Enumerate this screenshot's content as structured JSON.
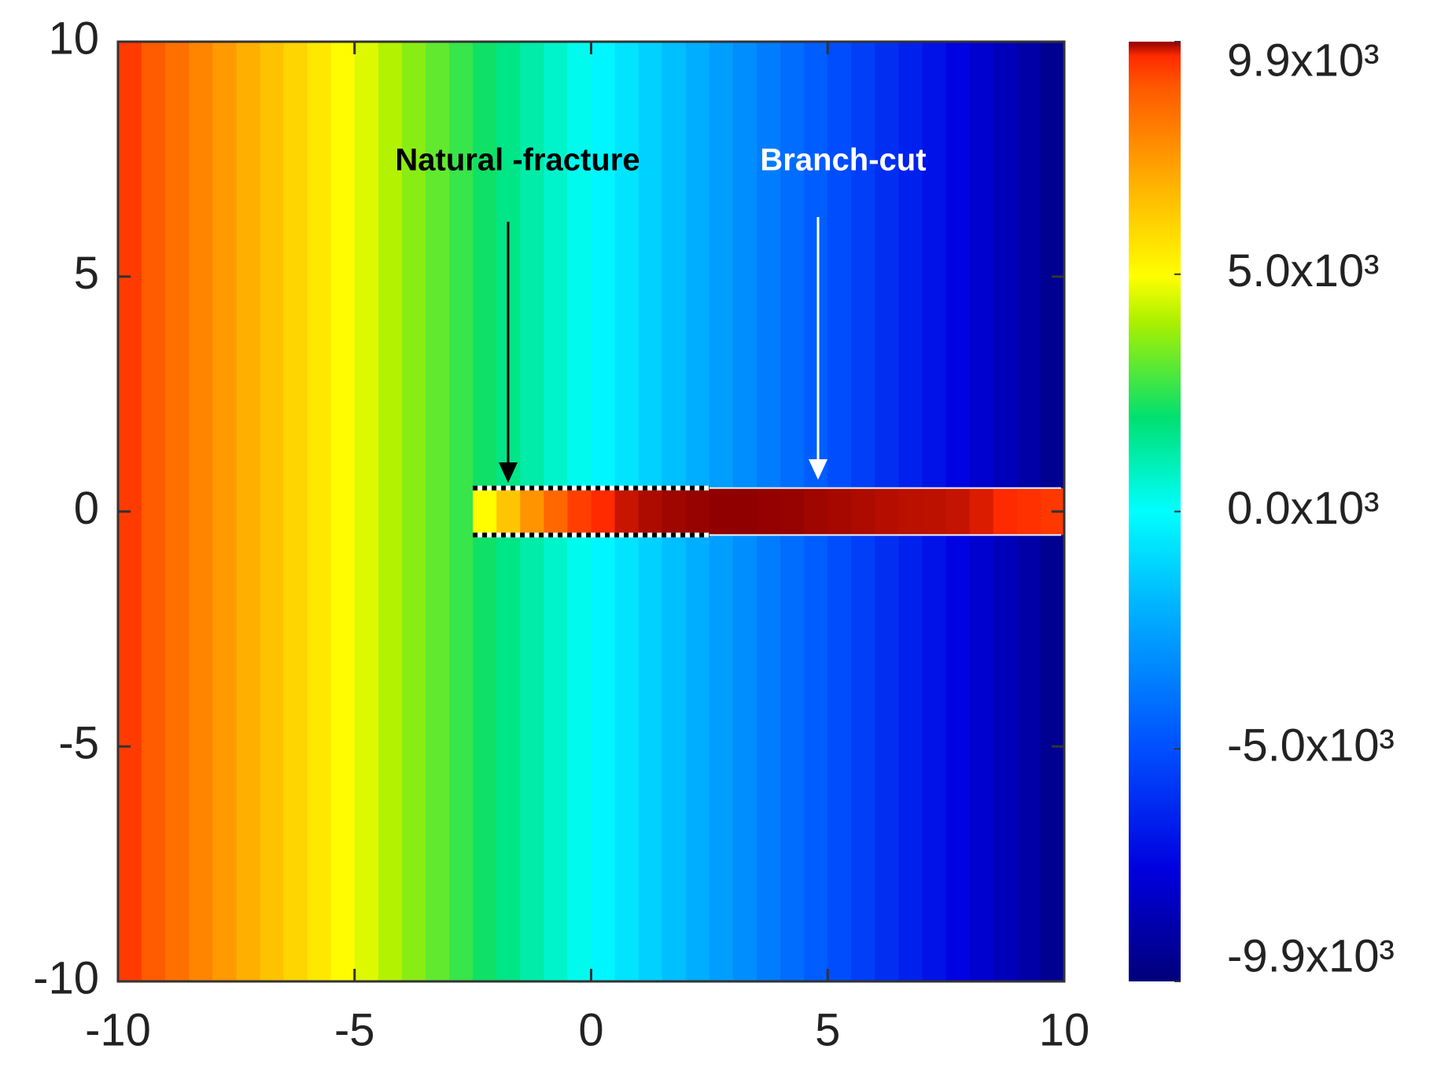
{
  "chart_data": {
    "type": "heatmap",
    "xlim": [
      -10,
      10
    ],
    "ylim": [
      -10,
      10
    ],
    "xticks": [
      -10,
      -5,
      0,
      5,
      10
    ],
    "yticks": [
      -10,
      -5,
      0,
      5,
      10
    ],
    "clim": [
      -9900,
      9900
    ],
    "cticks": [
      {
        "value": 9900,
        "label": "9.9x10³"
      },
      {
        "value": 5000,
        "label": "5.0x10³"
      },
      {
        "value": 0,
        "label": "0.0x10³"
      },
      {
        "value": -5000,
        "label": "-5.0x10³"
      },
      {
        "value": -9900,
        "label": "-9.9x10³"
      }
    ],
    "colorscale": [
      [
        0,
        "#00007a"
      ],
      [
        0.12,
        "#0000e0"
      ],
      [
        0.25,
        "#0050ff"
      ],
      [
        0.4,
        "#00b4ff"
      ],
      [
        0.5,
        "#00ffff"
      ],
      [
        0.6,
        "#00e070"
      ],
      [
        0.7,
        "#a8f000"
      ],
      [
        0.75,
        "#ffff00"
      ],
      [
        0.85,
        "#ffb000"
      ],
      [
        0.95,
        "#ff5a00"
      ],
      [
        0.985,
        "#ff2a00"
      ],
      [
        1,
        "#900000"
      ]
    ],
    "x": [
      -9.75,
      -9.25,
      -8.75,
      -8.25,
      -7.75,
      -7.25,
      -6.75,
      -6.25,
      -5.75,
      -5.25,
      -4.75,
      -4.25,
      -3.75,
      -3.25,
      -2.75,
      -2.25,
      -1.75,
      -1.25,
      -0.75,
      -0.25,
      0.25,
      0.75,
      1.25,
      1.75,
      2.25,
      2.75,
      3.25,
      3.75,
      4.25,
      4.75,
      5.25,
      5.75,
      6.25,
      6.75,
      7.25,
      7.75,
      8.25,
      8.75,
      9.25,
      9.75
    ],
    "values": [
      9360,
      8880,
      8400,
      7920,
      7440,
      6960,
      6480,
      6000,
      5520,
      5040,
      4560,
      4080,
      3600,
      3120,
      2640,
      2160,
      1680,
      1200,
      720,
      240,
      -240,
      -720,
      -1200,
      -1680,
      -2160,
      -2640,
      -3120,
      -3600,
      -4080,
      -4560,
      -5040,
      -5520,
      -6000,
      -6480,
      -6960,
      -7440,
      -7920,
      -8400,
      -8880,
      -9360
    ],
    "strip": {
      "ylim": [
        -0.5,
        0.5
      ],
      "x": [
        -2.25,
        -1.75,
        -1.25,
        -0.75,
        -0.25,
        0.25,
        0.75,
        1.25,
        1.75,
        2.25,
        2.75,
        3.25,
        3.75,
        4.25,
        4.75,
        5.25,
        5.75,
        6.25,
        6.75,
        7.25,
        7.75,
        8.25,
        8.75,
        9.25,
        9.75
      ],
      "values": [
        5000,
        6400,
        7600,
        8600,
        9300,
        9600,
        9750,
        9820,
        9860,
        9880,
        9900,
        9900,
        9890,
        9880,
        9860,
        9840,
        9820,
        9800,
        9790,
        9780,
        9760,
        9700,
        9600,
        9500,
        9400
      ]
    },
    "fracture_xlim": [
      -2.5,
      2.5
    ],
    "annotations": [
      "Natural -fracture",
      "Branch-cut"
    ]
  }
}
